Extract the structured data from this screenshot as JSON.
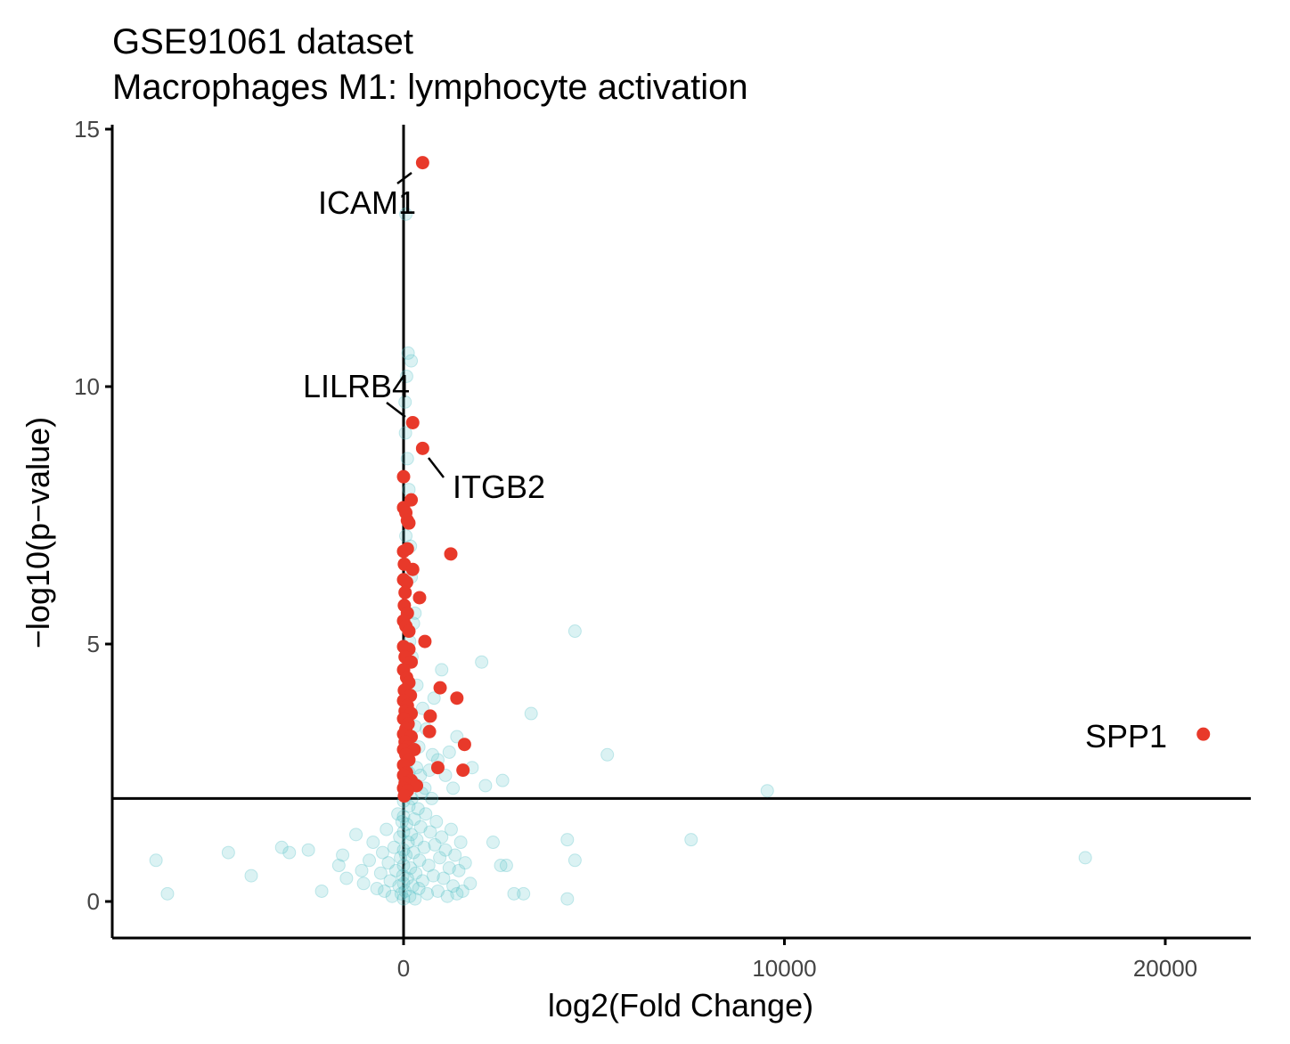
{
  "chart_data": {
    "type": "scatter",
    "title": "GSE91061 dataset",
    "subtitle": "Macrophages M1: lymphocyte activation",
    "xlabel": "log2(Fold Change)",
    "ylabel": "−log10(p−value)",
    "xlim": [
      -7600,
      22400
    ],
    "ylim": [
      -0.7,
      15.2
    ],
    "x_ticks": [
      {
        "value": 0,
        "label": "0"
      },
      {
        "value": 10000,
        "label": "10000"
      },
      {
        "value": 20000,
        "label": "20000"
      }
    ],
    "y_ticks": [
      {
        "value": 0,
        "label": "0"
      },
      {
        "value": 5,
        "label": "5"
      },
      {
        "value": 10,
        "label": "10"
      },
      {
        "value": 15,
        "label": "15"
      }
    ],
    "reference_lines": {
      "vertical_x": 0,
      "horizontal_y": 2
    },
    "grid": false,
    "legend": "none",
    "colors": {
      "significant": "#e8392a",
      "not_significant": "#5bc4c8",
      "axis": "#000000"
    },
    "significant_points": [
      {
        "x": 500,
        "y": 14.35
      },
      {
        "x": 240,
        "y": 9.3
      },
      {
        "x": 500,
        "y": 8.8
      },
      {
        "x": 1240,
        "y": 6.75
      },
      {
        "x": 21000,
        "y": 3.25
      },
      {
        "x": 0,
        "y": 8.25
      },
      {
        "x": 0,
        "y": 7.65
      },
      {
        "x": 200,
        "y": 7.8
      },
      {
        "x": 60,
        "y": 7.55
      },
      {
        "x": 100,
        "y": 7.4
      },
      {
        "x": 140,
        "y": 7.35
      },
      {
        "x": 0,
        "y": 6.8
      },
      {
        "x": 100,
        "y": 6.85
      },
      {
        "x": 20,
        "y": 6.55
      },
      {
        "x": 240,
        "y": 6.45
      },
      {
        "x": 0,
        "y": 6.25
      },
      {
        "x": 80,
        "y": 6.2
      },
      {
        "x": 40,
        "y": 6.0
      },
      {
        "x": 420,
        "y": 5.9
      },
      {
        "x": 20,
        "y": 5.75
      },
      {
        "x": 100,
        "y": 5.6
      },
      {
        "x": 0,
        "y": 5.45
      },
      {
        "x": 60,
        "y": 5.35
      },
      {
        "x": 140,
        "y": 5.25
      },
      {
        "x": 560,
        "y": 5.05
      },
      {
        "x": 0,
        "y": 4.95
      },
      {
        "x": 140,
        "y": 4.9
      },
      {
        "x": 40,
        "y": 4.75
      },
      {
        "x": 200,
        "y": 4.65
      },
      {
        "x": 0,
        "y": 4.5
      },
      {
        "x": 80,
        "y": 4.35
      },
      {
        "x": 140,
        "y": 4.25
      },
      {
        "x": 960,
        "y": 4.15
      },
      {
        "x": 20,
        "y": 4.1
      },
      {
        "x": 180,
        "y": 4.0
      },
      {
        "x": 1400,
        "y": 3.95
      },
      {
        "x": 0,
        "y": 3.9
      },
      {
        "x": 100,
        "y": 3.8
      },
      {
        "x": 40,
        "y": 3.7
      },
      {
        "x": 200,
        "y": 3.65
      },
      {
        "x": 700,
        "y": 3.6
      },
      {
        "x": 0,
        "y": 3.55
      },
      {
        "x": 120,
        "y": 3.45
      },
      {
        "x": 60,
        "y": 3.35
      },
      {
        "x": 680,
        "y": 3.3
      },
      {
        "x": 0,
        "y": 3.25
      },
      {
        "x": 200,
        "y": 3.2
      },
      {
        "x": 40,
        "y": 3.1
      },
      {
        "x": 1600,
        "y": 3.05
      },
      {
        "x": 100,
        "y": 3.0
      },
      {
        "x": 0,
        "y": 2.95
      },
      {
        "x": 280,
        "y": 2.95
      },
      {
        "x": 60,
        "y": 2.85
      },
      {
        "x": 140,
        "y": 2.75
      },
      {
        "x": 0,
        "y": 2.65
      },
      {
        "x": 900,
        "y": 2.6
      },
      {
        "x": 1560,
        "y": 2.55
      },
      {
        "x": 80,
        "y": 2.5
      },
      {
        "x": 0,
        "y": 2.45
      },
      {
        "x": 200,
        "y": 2.35
      },
      {
        "x": 40,
        "y": 2.3
      },
      {
        "x": 340,
        "y": 2.25
      },
      {
        "x": 0,
        "y": 2.2
      },
      {
        "x": 100,
        "y": 2.15
      },
      {
        "x": 20,
        "y": 2.05
      }
    ],
    "nonsignificant_points": [
      {
        "x": 4500,
        "y": 5.25
      },
      {
        "x": 2050,
        "y": 4.65
      },
      {
        "x": 3350,
        "y": 3.65
      },
      {
        "x": 5350,
        "y": 2.85
      },
      {
        "x": 2600,
        "y": 2.35
      },
      {
        "x": 2150,
        "y": 2.25
      },
      {
        "x": 9550,
        "y": 2.15
      },
      {
        "x": 17900,
        "y": 0.85
      },
      {
        "x": 7550,
        "y": 1.2
      },
      {
        "x": 4300,
        "y": 1.2
      },
      {
        "x": 4500,
        "y": 0.8
      },
      {
        "x": 4300,
        "y": 0.05
      },
      {
        "x": 2900,
        "y": 0.15
      },
      {
        "x": 3150,
        "y": 0.15
      },
      {
        "x": 2350,
        "y": 1.15
      },
      {
        "x": 2700,
        "y": 0.7
      },
      {
        "x": 2550,
        "y": 0.7
      },
      {
        "x": 1750,
        "y": 0.35
      },
      {
        "x": -6500,
        "y": 0.8
      },
      {
        "x": -6200,
        "y": 0.15
      },
      {
        "x": -4600,
        "y": 0.95
      },
      {
        "x": -4000,
        "y": 0.5
      },
      {
        "x": -3200,
        "y": 1.05
      },
      {
        "x": -3000,
        "y": 0.95
      },
      {
        "x": -2500,
        "y": 1.0
      },
      {
        "x": -2150,
        "y": 0.2
      },
      {
        "x": -1600,
        "y": 0.9
      },
      {
        "x": -1500,
        "y": 0.45
      },
      {
        "x": -1700,
        "y": 0.7
      },
      {
        "x": -1250,
        "y": 1.3
      },
      {
        "x": -1100,
        "y": 0.6
      },
      {
        "x": -1050,
        "y": 0.35
      },
      {
        "x": -900,
        "y": 0.8
      },
      {
        "x": -800,
        "y": 1.15
      },
      {
        "x": -700,
        "y": 0.25
      },
      {
        "x": -600,
        "y": 0.55
      },
      {
        "x": -550,
        "y": 0.95
      },
      {
        "x": -500,
        "y": 0.2
      },
      {
        "x": -450,
        "y": 1.4
      },
      {
        "x": -400,
        "y": 0.75
      },
      {
        "x": -350,
        "y": 0.4
      },
      {
        "x": -300,
        "y": 0.1
      },
      {
        "x": -250,
        "y": 1.05
      },
      {
        "x": -200,
        "y": 0.6
      },
      {
        "x": -150,
        "y": 1.7
      },
      {
        "x": -120,
        "y": 0.3
      },
      {
        "x": -100,
        "y": 1.25
      },
      {
        "x": -80,
        "y": 0.85
      },
      {
        "x": -60,
        "y": 0.15
      },
      {
        "x": -40,
        "y": 1.55
      },
      {
        "x": -20,
        "y": 0.5
      },
      {
        "x": 0,
        "y": 0.05
      },
      {
        "x": 0,
        "y": 0.35
      },
      {
        "x": 0,
        "y": 0.7
      },
      {
        "x": 0,
        "y": 1.0
      },
      {
        "x": 0,
        "y": 1.35
      },
      {
        "x": 0,
        "y": 1.65
      },
      {
        "x": 0,
        "y": 1.95
      },
      {
        "x": 20,
        "y": 2.4
      },
      {
        "x": 40,
        "y": 0.2
      },
      {
        "x": 60,
        "y": 0.9
      },
      {
        "x": 80,
        "y": 1.5
      },
      {
        "x": 100,
        "y": 0.45
      },
      {
        "x": 120,
        "y": 1.15
      },
      {
        "x": 140,
        "y": 1.85
      },
      {
        "x": 160,
        "y": 0.1
      },
      {
        "x": 180,
        "y": 0.65
      },
      {
        "x": 200,
        "y": 1.3
      },
      {
        "x": 220,
        "y": 2.0
      },
      {
        "x": 240,
        "y": 0.3
      },
      {
        "x": 260,
        "y": 0.95
      },
      {
        "x": 280,
        "y": 1.6
      },
      {
        "x": 300,
        "y": 0.05
      },
      {
        "x": 320,
        "y": 0.55
      },
      {
        "x": 350,
        "y": 1.2
      },
      {
        "x": 380,
        "y": 1.8
      },
      {
        "x": 400,
        "y": 0.25
      },
      {
        "x": 420,
        "y": 0.8
      },
      {
        "x": 450,
        "y": 1.45
      },
      {
        "x": 480,
        "y": 2.1
      },
      {
        "x": 500,
        "y": 0.4
      },
      {
        "x": 540,
        "y": 1.05
      },
      {
        "x": 580,
        "y": 1.7
      },
      {
        "x": 620,
        "y": 0.15
      },
      {
        "x": 660,
        "y": 0.7
      },
      {
        "x": 700,
        "y": 1.35
      },
      {
        "x": 740,
        "y": 2.0
      },
      {
        "x": 780,
        "y": 0.5
      },
      {
        "x": 820,
        "y": 1.1
      },
      {
        "x": 860,
        "y": 1.55
      },
      {
        "x": 900,
        "y": 0.2
      },
      {
        "x": 950,
        "y": 0.85
      },
      {
        "x": 1000,
        "y": 1.25
      },
      {
        "x": 1050,
        "y": 0.45
      },
      {
        "x": 1100,
        "y": 1.0
      },
      {
        "x": 1150,
        "y": 0.1
      },
      {
        "x": 1200,
        "y": 0.65
      },
      {
        "x": 1250,
        "y": 1.4
      },
      {
        "x": 1300,
        "y": 0.3
      },
      {
        "x": 1350,
        "y": 0.9
      },
      {
        "x": 1400,
        "y": 0.15
      },
      {
        "x": 1450,
        "y": 0.6
      },
      {
        "x": 1500,
        "y": 1.15
      },
      {
        "x": 1550,
        "y": 0.2
      },
      {
        "x": 1620,
        "y": 0.75
      },
      {
        "x": 1400,
        "y": 3.2
      },
      {
        "x": 1200,
        "y": 2.9
      },
      {
        "x": 900,
        "y": 2.75
      },
      {
        "x": 1000,
        "y": 4.5
      },
      {
        "x": 800,
        "y": 3.95
      },
      {
        "x": 600,
        "y": 3.35
      },
      {
        "x": 350,
        "y": 4.2
      },
      {
        "x": 300,
        "y": 5.6
      },
      {
        "x": 200,
        "y": 6.3
      },
      {
        "x": 100,
        "y": 8.6
      },
      {
        "x": 50,
        "y": 9.1
      },
      {
        "x": 40,
        "y": 9.7
      },
      {
        "x": 120,
        "y": 10.65
      },
      {
        "x": 200,
        "y": 10.5
      },
      {
        "x": 80,
        "y": 10.2
      },
      {
        "x": 60,
        "y": 13.35
      },
      {
        "x": 60,
        "y": 2.6
      },
      {
        "x": 140,
        "y": 2.5
      },
      {
        "x": 260,
        "y": 2.3
      },
      {
        "x": 340,
        "y": 2.6
      },
      {
        "x": 440,
        "y": 2.45
      },
      {
        "x": 560,
        "y": 2.2
      },
      {
        "x": 680,
        "y": 2.55
      },
      {
        "x": 760,
        "y": 2.85
      },
      {
        "x": 1100,
        "y": 2.45
      },
      {
        "x": 1300,
        "y": 2.2
      },
      {
        "x": 1800,
        "y": 2.6
      },
      {
        "x": 400,
        "y": 3.0
      },
      {
        "x": 500,
        "y": 3.75
      },
      {
        "x": 300,
        "y": 3.4
      },
      {
        "x": 220,
        "y": 4.75
      },
      {
        "x": 160,
        "y": 5.05
      },
      {
        "x": 260,
        "y": 5.4
      },
      {
        "x": 180,
        "y": 6.9
      },
      {
        "x": 60,
        "y": 7.1
      },
      {
        "x": 140,
        "y": 8.0
      }
    ],
    "annotations": [
      {
        "label": "ICAM1",
        "x": 500,
        "y": 14.35
      },
      {
        "label": "LILRB4",
        "x": 240,
        "y": 9.3
      },
      {
        "label": "ITGB2",
        "x": 500,
        "y": 8.8
      },
      {
        "label": "SPP1",
        "x": 21000,
        "y": 3.25
      }
    ]
  }
}
